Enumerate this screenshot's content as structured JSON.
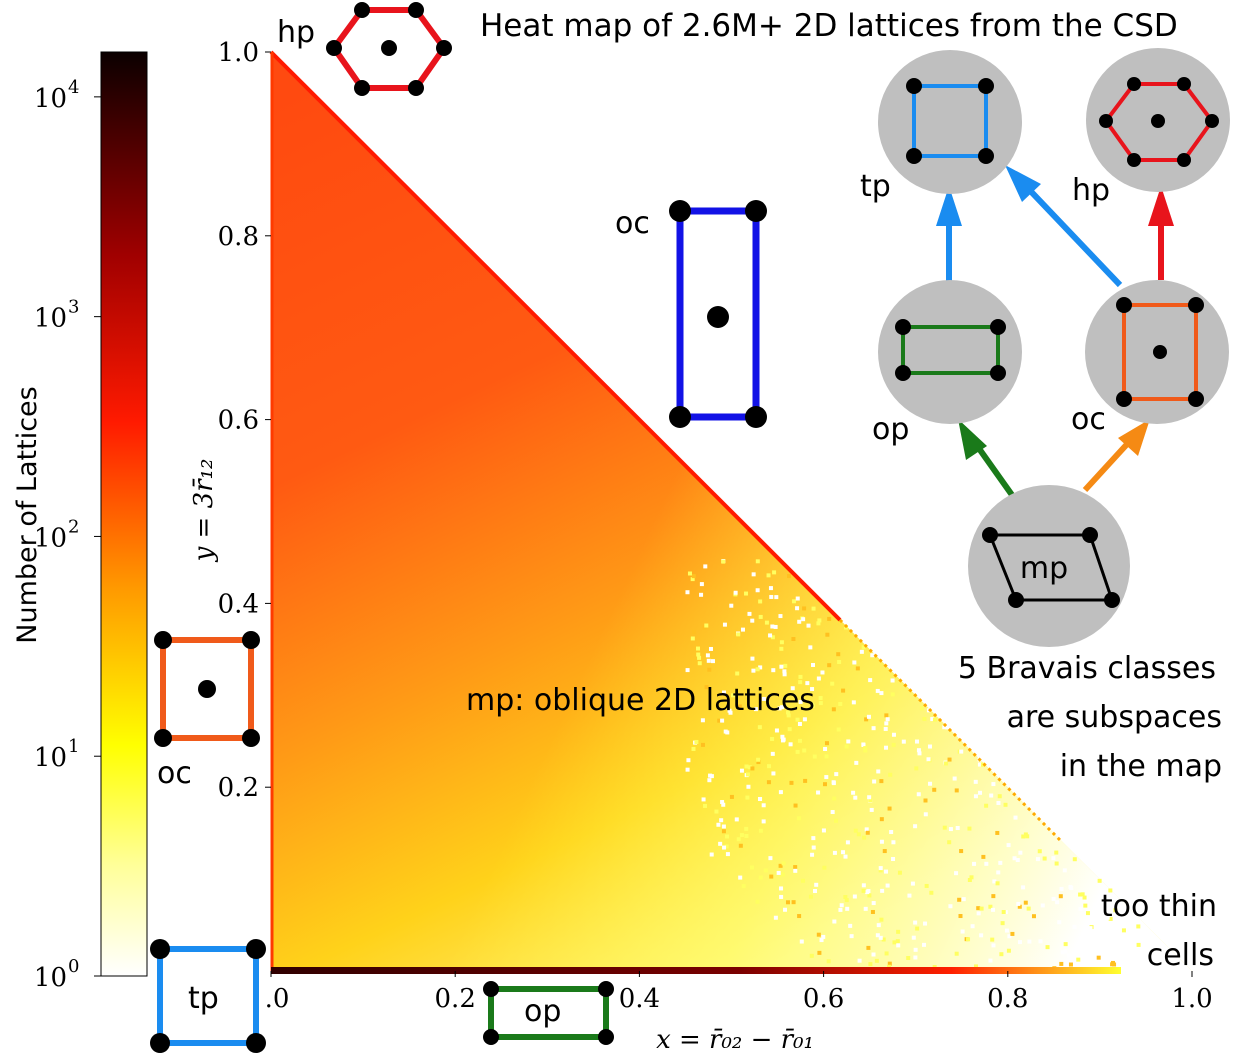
{
  "chart_data": {
    "type": "heatmap",
    "title": "Heat map of 2.6M+ 2D lattices from the CSD",
    "xlabel": "x = r̄₀₂ − r̄₀₁",
    "ylabel": "y = 3r̄₁₂",
    "xlim": [
      0,
      1.0
    ],
    "ylim": [
      0,
      1.0
    ],
    "x_ticks": [
      ".0",
      "0.2",
      "0.4",
      "0.6",
      "0.8",
      "1.0"
    ],
    "y_ticks": [
      "0.2",
      "0.4",
      "0.6",
      "0.8",
      "1.0"
    ],
    "colorbar": {
      "label": "Number of Lattices",
      "scale": "log",
      "range": [
        1,
        16000
      ],
      "tick_labels": [
        {
          "base": "10",
          "exp": "0",
          "value": 1
        },
        {
          "base": "10",
          "exp": "1",
          "value": 10
        },
        {
          "base": "10",
          "exp": "2",
          "value": 100
        },
        {
          "base": "10",
          "exp": "3",
          "value": 1000
        },
        {
          "base": "10",
          "exp": "4",
          "value": 10000
        }
      ]
    },
    "domain": "triangle x + y <= 1",
    "density_description": "high density (hundreds of lattices) near the diagonal x + y = 1 and the y axis; decreasing to a few lattices near the bottom right corner; a thin high-density strip along y = 0"
  },
  "annotations": {
    "region_label": "mp: oblique 2D lattices",
    "too_thin_line1": "too thin",
    "too_thin_line2": "cells",
    "bravais_line1": "5 Bravais classes",
    "bravais_line2": "are subspaces",
    "bravais_line3": "in the map"
  },
  "lattice_labels": {
    "hp_top": "hp",
    "oc_center": "oc",
    "oc_left": "oc",
    "tp_bottom": "tp",
    "op_bottom": "op"
  },
  "hierarchy": {
    "tp": "tp",
    "hp": "hp",
    "op": "op",
    "oc": "oc",
    "mp": "mp"
  },
  "colors": {
    "hp": "#e8141c",
    "oc": "#f05a1a",
    "oc_center": "#1212e6",
    "tp": "#1a8cf0",
    "op": "#1a7a1a",
    "mp": "#000000",
    "arrow_oc": "#f58a14",
    "bubble": "#bfbfbf"
  }
}
